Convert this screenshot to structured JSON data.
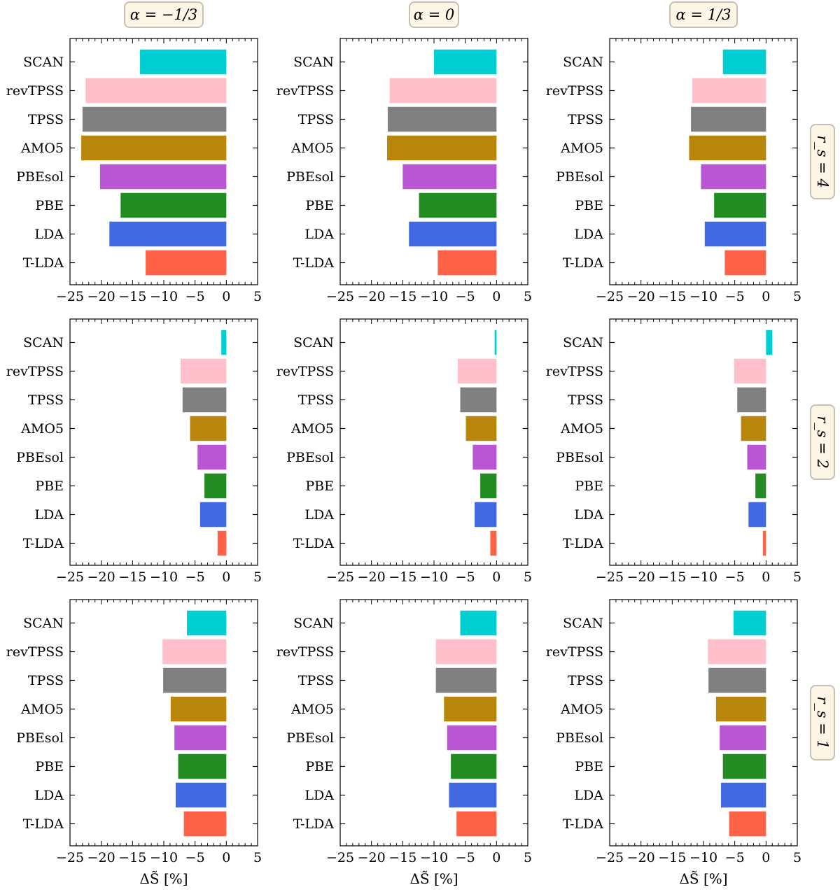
{
  "col_headers": [
    "α = −1/3",
    "α = 0",
    "α = 1/3"
  ],
  "row_headers": [
    "r_s = 4",
    "r_s = 2",
    "r_s = 1"
  ],
  "colors": {
    "SCAN": "#00ced1",
    "revTPSS": "#ffc0cb",
    "TPSS": "#808080",
    "AMO5": "#b8860b",
    "PBEsol": "#ba55d3",
    "PBE": "#228b22",
    "LDA": "#4169e1",
    "T-LDA": "#ff6347",
    "header_box_fill": "#fdf5e6",
    "header_box_stroke": "#c8c0b0"
  },
  "chart_data": {
    "type": "bar",
    "orientation": "horizontal",
    "grid": "3x3",
    "categories": [
      "SCAN",
      "revTPSS",
      "TPSS",
      "AMO5",
      "PBEsol",
      "PBE",
      "LDA",
      "T-LDA"
    ],
    "xlabel": "ΔS̃ [%]",
    "xlim": [
      -25,
      5
    ],
    "xticks": [
      "−25",
      "−20",
      "−15",
      "−10",
      "−5",
      "0",
      "5"
    ],
    "grid_lines": false,
    "panels": [
      {
        "row": "r_s = 4",
        "col": "α = −1/3",
        "values": [
          -13.8,
          -22.5,
          -23.0,
          -23.2,
          -20.2,
          -16.9,
          -18.7,
          -12.9
        ]
      },
      {
        "row": "r_s = 4",
        "col": "α = 0",
        "values": [
          -10.0,
          -17.1,
          -17.4,
          -17.5,
          -15.0,
          -12.4,
          -14.0,
          -9.4
        ]
      },
      {
        "row": "r_s = 4",
        "col": "α = 1/3",
        "values": [
          -6.9,
          -11.8,
          -12.0,
          -12.3,
          -10.4,
          -8.3,
          -9.8,
          -6.6
        ]
      },
      {
        "row": "r_s = 2",
        "col": "α = −1/3",
        "values": [
          -0.8,
          -7.3,
          -7.0,
          -5.8,
          -4.6,
          -3.5,
          -4.2,
          -1.4
        ]
      },
      {
        "row": "r_s = 2",
        "col": "α = 0",
        "values": [
          -0.3,
          -6.2,
          -5.8,
          -4.9,
          -3.8,
          -2.6,
          -3.5,
          -1.0
        ]
      },
      {
        "row": "r_s = 2",
        "col": "α = 1/3",
        "values": [
          1.0,
          -5.1,
          -4.6,
          -4.0,
          -3.0,
          -1.7,
          -2.8,
          -0.5
        ]
      },
      {
        "row": "r_s = 1",
        "col": "α = −1/3",
        "values": [
          -6.3,
          -10.2,
          -10.1,
          -8.9,
          -8.3,
          -7.7,
          -8.1,
          -6.8
        ]
      },
      {
        "row": "r_s = 1",
        "col": "α = 0",
        "values": [
          -5.8,
          -9.7,
          -9.7,
          -8.4,
          -7.9,
          -7.3,
          -7.6,
          -6.4
        ]
      },
      {
        "row": "r_s = 1",
        "col": "α = 1/3",
        "values": [
          -5.2,
          -9.3,
          -9.2,
          -8.0,
          -7.4,
          -6.9,
          -7.2,
          -5.9
        ]
      }
    ]
  }
}
